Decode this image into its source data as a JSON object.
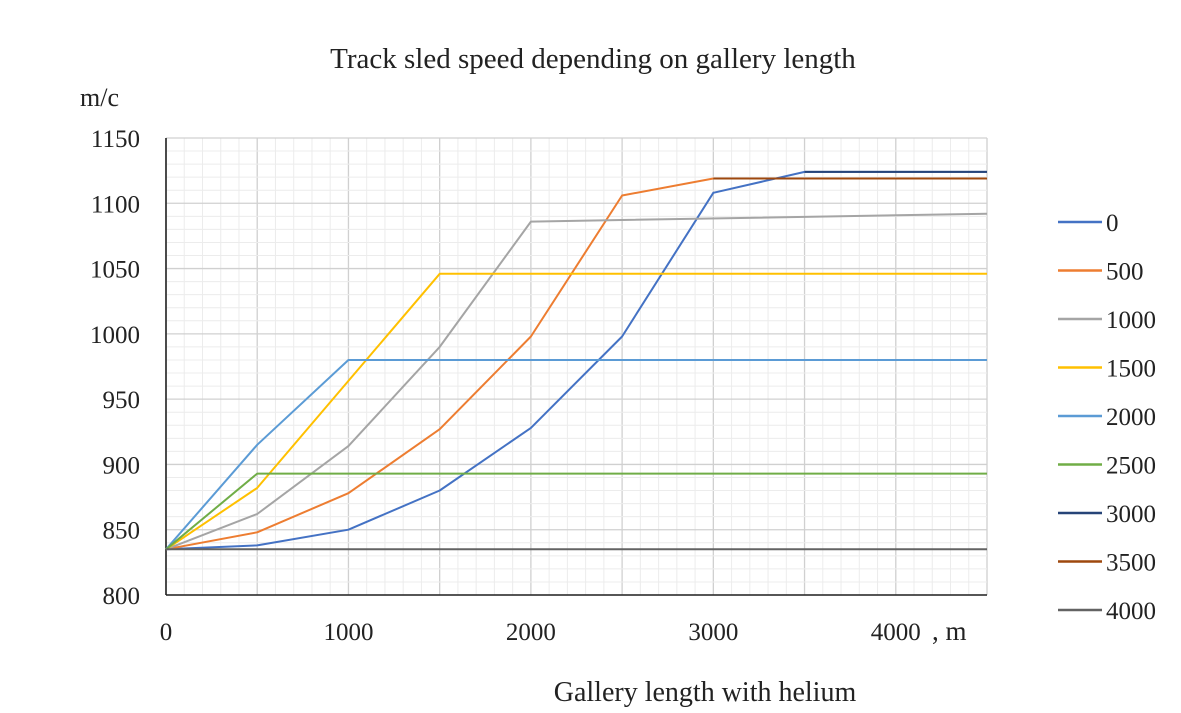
{
  "chart_data": {
    "type": "line",
    "title": "Track sled speed depending on gallery length",
    "xlabel": "Gallery length with helium",
    "x_unit": ", m",
    "ylabel": "m/c",
    "xlim": [
      0,
      4500
    ],
    "ylim": [
      800,
      1150
    ],
    "x_ticks": [
      0,
      1000,
      2000,
      3000,
      4000
    ],
    "x_tick_labels": [
      "0",
      "1000",
      "2000",
      "3000",
      "4000"
    ],
    "y_ticks": [
      800,
      850,
      900,
      950,
      1000,
      1050,
      1100,
      1150
    ],
    "y_tick_labels": [
      "800",
      "850",
      "900",
      "950",
      "1000",
      "1050",
      "1100",
      "1150"
    ],
    "grid": true,
    "legend_position": "right",
    "series": [
      {
        "name": "0",
        "color": "#4472c4",
        "x": [
          0,
          500,
          1000,
          1500,
          2000,
          2500,
          3000,
          3500,
          4500
        ],
        "y": [
          835,
          838,
          850,
          880,
          928,
          998,
          1108,
          1124,
          1124
        ]
      },
      {
        "name": "500",
        "color": "#ed7d31",
        "x": [
          0,
          500,
          1000,
          1500,
          2000,
          2500,
          3000,
          4500
        ],
        "y": [
          835,
          848,
          878,
          927,
          998,
          1106,
          1119,
          1119
        ]
      },
      {
        "name": "1000",
        "color": "#a5a5a5",
        "x": [
          0,
          500,
          1000,
          1500,
          2000,
          4500
        ],
        "y": [
          835,
          862,
          914,
          990,
          1086,
          1092
        ]
      },
      {
        "name": "1500",
        "color": "#ffc000",
        "x": [
          0,
          500,
          1000,
          1500,
          4500
        ],
        "y": [
          835,
          882,
          964,
          1046,
          1046
        ]
      },
      {
        "name": "2000",
        "color": "#5b9bd5",
        "x": [
          0,
          500,
          1000,
          4500
        ],
        "y": [
          835,
          915,
          980,
          980
        ]
      },
      {
        "name": "2500",
        "color": "#70ad47",
        "x": [
          0,
          500,
          4500
        ],
        "y": [
          835,
          893,
          893
        ]
      },
      {
        "name": "3000",
        "color": "#264478",
        "x": [
          3500,
          4500
        ],
        "y": [
          1124,
          1124
        ]
      },
      {
        "name": "3500",
        "color": "#9e480e",
        "x": [
          3000,
          4500
        ],
        "y": [
          1119,
          1119
        ]
      },
      {
        "name": "4000",
        "color": "#636363",
        "x": [
          0,
          4500
        ],
        "y": [
          835,
          835
        ]
      }
    ]
  }
}
